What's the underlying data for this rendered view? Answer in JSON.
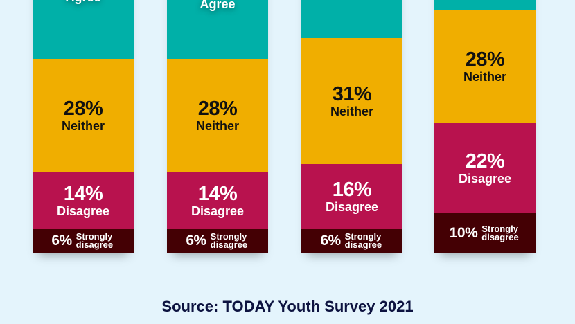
{
  "chart_data": {
    "type": "bar",
    "stacked": true,
    "orientation": "vertical",
    "segment_labels": [
      "Strongly disagree",
      "Disagree",
      "Neither",
      "Agree"
    ],
    "colors": {
      "Agree": "#00b0a8",
      "Neither": "#f0ae00",
      "Disagree": "#b8124e",
      "Strongly disagree": "#440004",
      "background": "#e4f4fc",
      "source_text": "#0d1340"
    },
    "bars": [
      {
        "agree_label": "Agree",
        "neither": 28,
        "disagree": 14,
        "strongly_disagree": 6
      },
      {
        "agree_label": "Agree",
        "neither": 28,
        "disagree": 14,
        "strongly_disagree": 6
      },
      {
        "agree_label": null,
        "neither": 31,
        "disagree": 16,
        "strongly_disagree": 6
      },
      {
        "agree_label": null,
        "neither": 28,
        "disagree": 22,
        "strongly_disagree": 10
      }
    ],
    "labels": {
      "neither": "Neither",
      "disagree": "Disagree",
      "strongly_disagree_line1": "Strongly",
      "strongly_disagree_line2": "disagree"
    }
  },
  "source": "Source: TODAY Youth Survey 2021"
}
